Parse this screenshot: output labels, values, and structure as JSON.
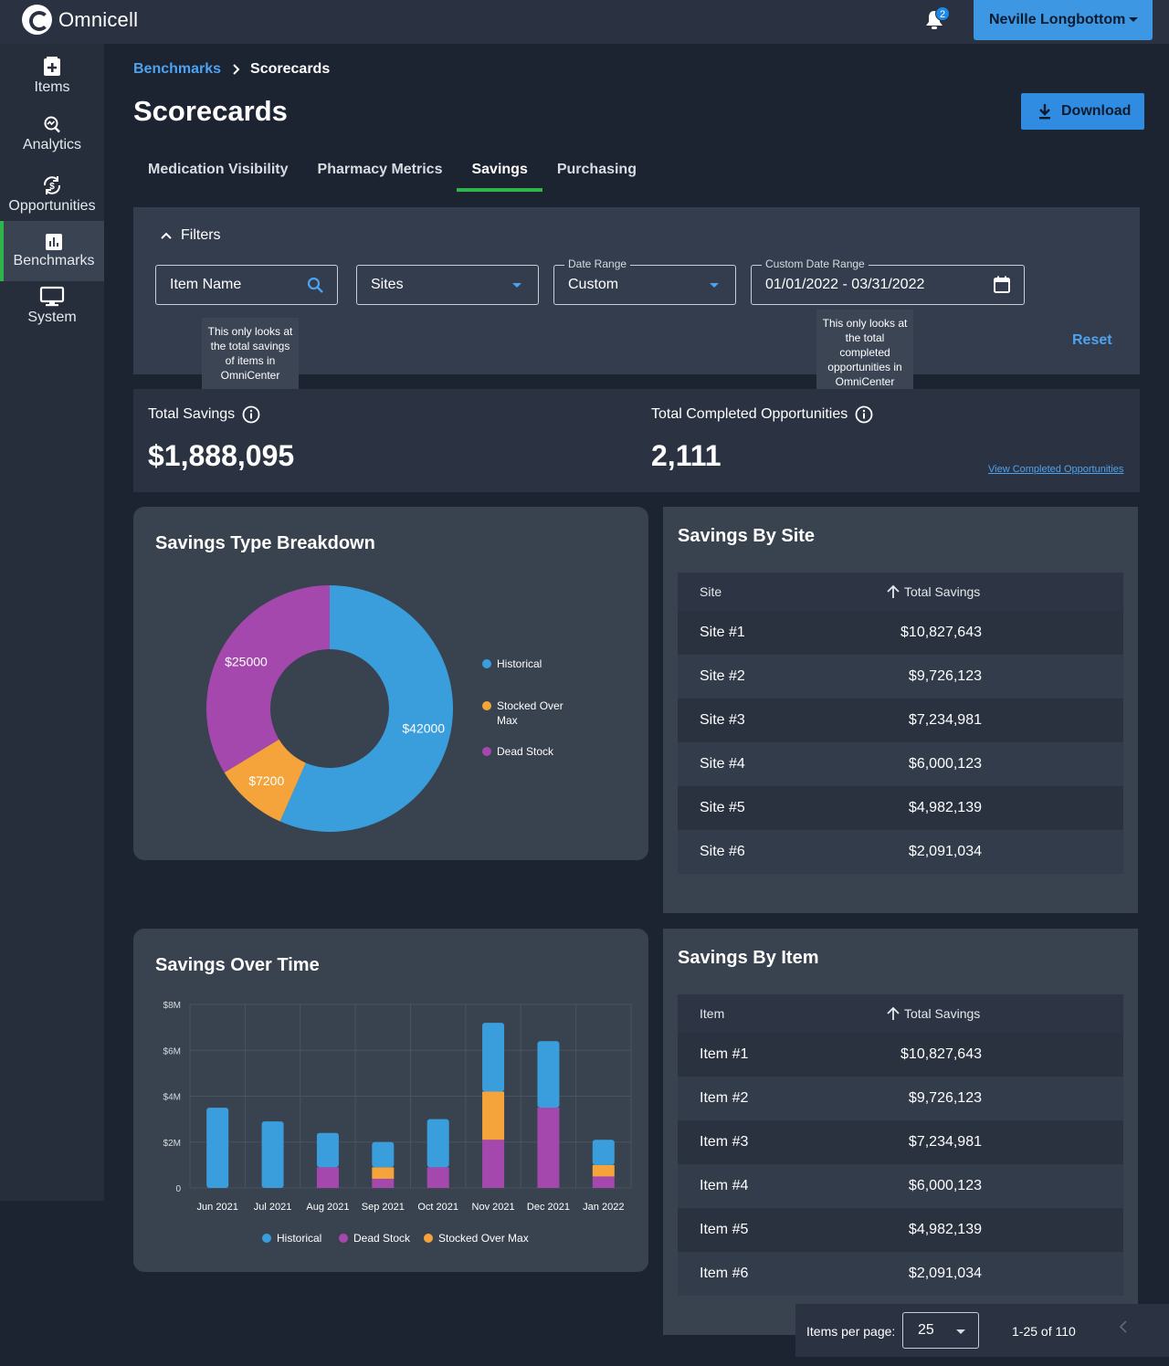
{
  "header": {
    "brand": "Omnicell",
    "notification_count": "2",
    "user_name": "Neville Longbottom"
  },
  "sidebar": {
    "items": [
      {
        "label": "Items",
        "icon": "items-icon"
      },
      {
        "label": "Analytics",
        "icon": "analytics-icon"
      },
      {
        "label": "Opportunities",
        "icon": "opportunities-icon"
      },
      {
        "label": "Benchmarks",
        "icon": "benchmarks-icon",
        "active": true
      },
      {
        "label": "System",
        "icon": "system-icon"
      }
    ]
  },
  "breadcrumb": {
    "parent": "Benchmarks",
    "current": "Scorecards"
  },
  "page": {
    "title": "Scorecards",
    "download_label": "Download"
  },
  "tabs": [
    {
      "label": "Medication Visibility"
    },
    {
      "label": "Pharmacy Metrics"
    },
    {
      "label": "Savings",
      "active": true
    },
    {
      "label": "Purchasing"
    }
  ],
  "filters": {
    "toggle_label": "Filters",
    "item_name_placeholder": "Item Name",
    "sites_value": "Sites",
    "date_range_label": "Date Range",
    "date_range_value": "Custom",
    "custom_date_label": "Custom Date Range",
    "custom_date_value": "01/01/2022 - 03/31/2022",
    "reset_label": "Reset"
  },
  "tooltips": {
    "savings": "This only looks at the total savings of items in OmniCenter",
    "opportunities": "This only looks at the total completed opportunities in OmniCenter"
  },
  "summary": {
    "total_savings_label": "Total Savings",
    "total_savings_value": "$1,888,095",
    "total_completed_label": "Total Completed Opportunities",
    "total_completed_value": "2,111",
    "view_link": "View Completed Opportunities"
  },
  "colors": {
    "historical": "#3a9ddc",
    "stocked_over_max": "#f4a43a",
    "dead_stock": "#a548ad",
    "accent": "#2fb34a",
    "link": "#4da3f0"
  },
  "breakdown": {
    "title": "Savings Type Breakdown",
    "chart_data": {
      "type": "pie",
      "donut": true,
      "series": [
        {
          "name": "Historical",
          "value": 42000,
          "label": "$42000"
        },
        {
          "name": "Stocked Over Max",
          "value": 7200,
          "label": "$7200"
        },
        {
          "name": "Dead Stock",
          "value": 25000,
          "label": "$25000"
        }
      ],
      "legend": [
        "Historical",
        "Stocked Over Max",
        "Dead Stock"
      ],
      "legend_position": "right"
    }
  },
  "over_time": {
    "title": "Savings Over Time",
    "chart_data": {
      "type": "bar",
      "stacked": true,
      "categories": [
        "Jun 2021",
        "Jul 2021",
        "Aug 2021",
        "Sep 2021",
        "Oct 2021",
        "Nov 2021",
        "Dec 2021",
        "Jan 2022"
      ],
      "series": [
        {
          "name": "Dead Stock",
          "values": [
            0,
            0,
            0.9,
            0.4,
            0.9,
            2.1,
            3.5,
            0.5
          ]
        },
        {
          "name": "Stocked Over Max",
          "values": [
            0,
            0,
            0,
            0.5,
            0,
            2.1,
            0,
            0.5
          ]
        },
        {
          "name": "Historical",
          "values": [
            3.5,
            2.9,
            1.5,
            1.1,
            2.1,
            3.0,
            2.9,
            1.1
          ]
        }
      ],
      "y_ticks": [
        "0",
        "$2M",
        "$4M",
        "$6M",
        "$8M"
      ],
      "ylim": [
        0,
        8
      ],
      "grid": true,
      "legend": [
        "Historical",
        "Dead Stock",
        "Stocked Over Max"
      ],
      "legend_position": "bottom"
    }
  },
  "by_site": {
    "title": "Savings By Site",
    "col_a": "Site",
    "col_b": "Total Savings",
    "rows": [
      {
        "a": "Site #1",
        "b": "$10,827,643"
      },
      {
        "a": "Site #2",
        "b": "$9,726,123"
      },
      {
        "a": "Site #3",
        "b": "$7,234,981"
      },
      {
        "a": "Site #4",
        "b": "$6,000,123"
      },
      {
        "a": "Site #5",
        "b": "$4,982,139"
      },
      {
        "a": "Site #6",
        "b": "$2,091,034"
      }
    ]
  },
  "by_item": {
    "title": "Savings By Item",
    "col_a": "Item",
    "col_b": "Total Savings",
    "rows": [
      {
        "a": "Item #1",
        "b": "$10,827,643"
      },
      {
        "a": "Item #2",
        "b": "$9,726,123"
      },
      {
        "a": "Item #3",
        "b": "$7,234,981"
      },
      {
        "a": "Item #4",
        "b": "$6,000,123"
      },
      {
        "a": "Item #5",
        "b": "$4,982,139"
      },
      {
        "a": "Item #6",
        "b": "$2,091,034"
      }
    ]
  },
  "pagination": {
    "label": "Items per page:",
    "per_page": "25",
    "range": "1-25 of 110"
  }
}
